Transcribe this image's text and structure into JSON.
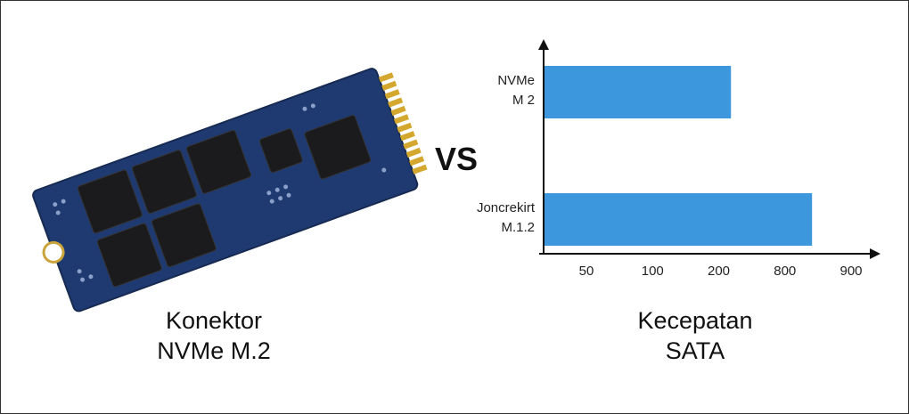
{
  "chart_data": {
    "type": "hbar",
    "categories": [
      "NVMe\nM 2",
      "Joncrekirt\nM.1.2"
    ],
    "values": [
      311,
      841
    ],
    "color": "#3d97dc",
    "xlim": [
      20,
      940
    ],
    "xticks": [
      50,
      100,
      200,
      800,
      900
    ],
    "caption": "Kecepatan\nSATA"
  },
  "left_caption": "Konektor\nNVMe M.2",
  "versus": "VS"
}
